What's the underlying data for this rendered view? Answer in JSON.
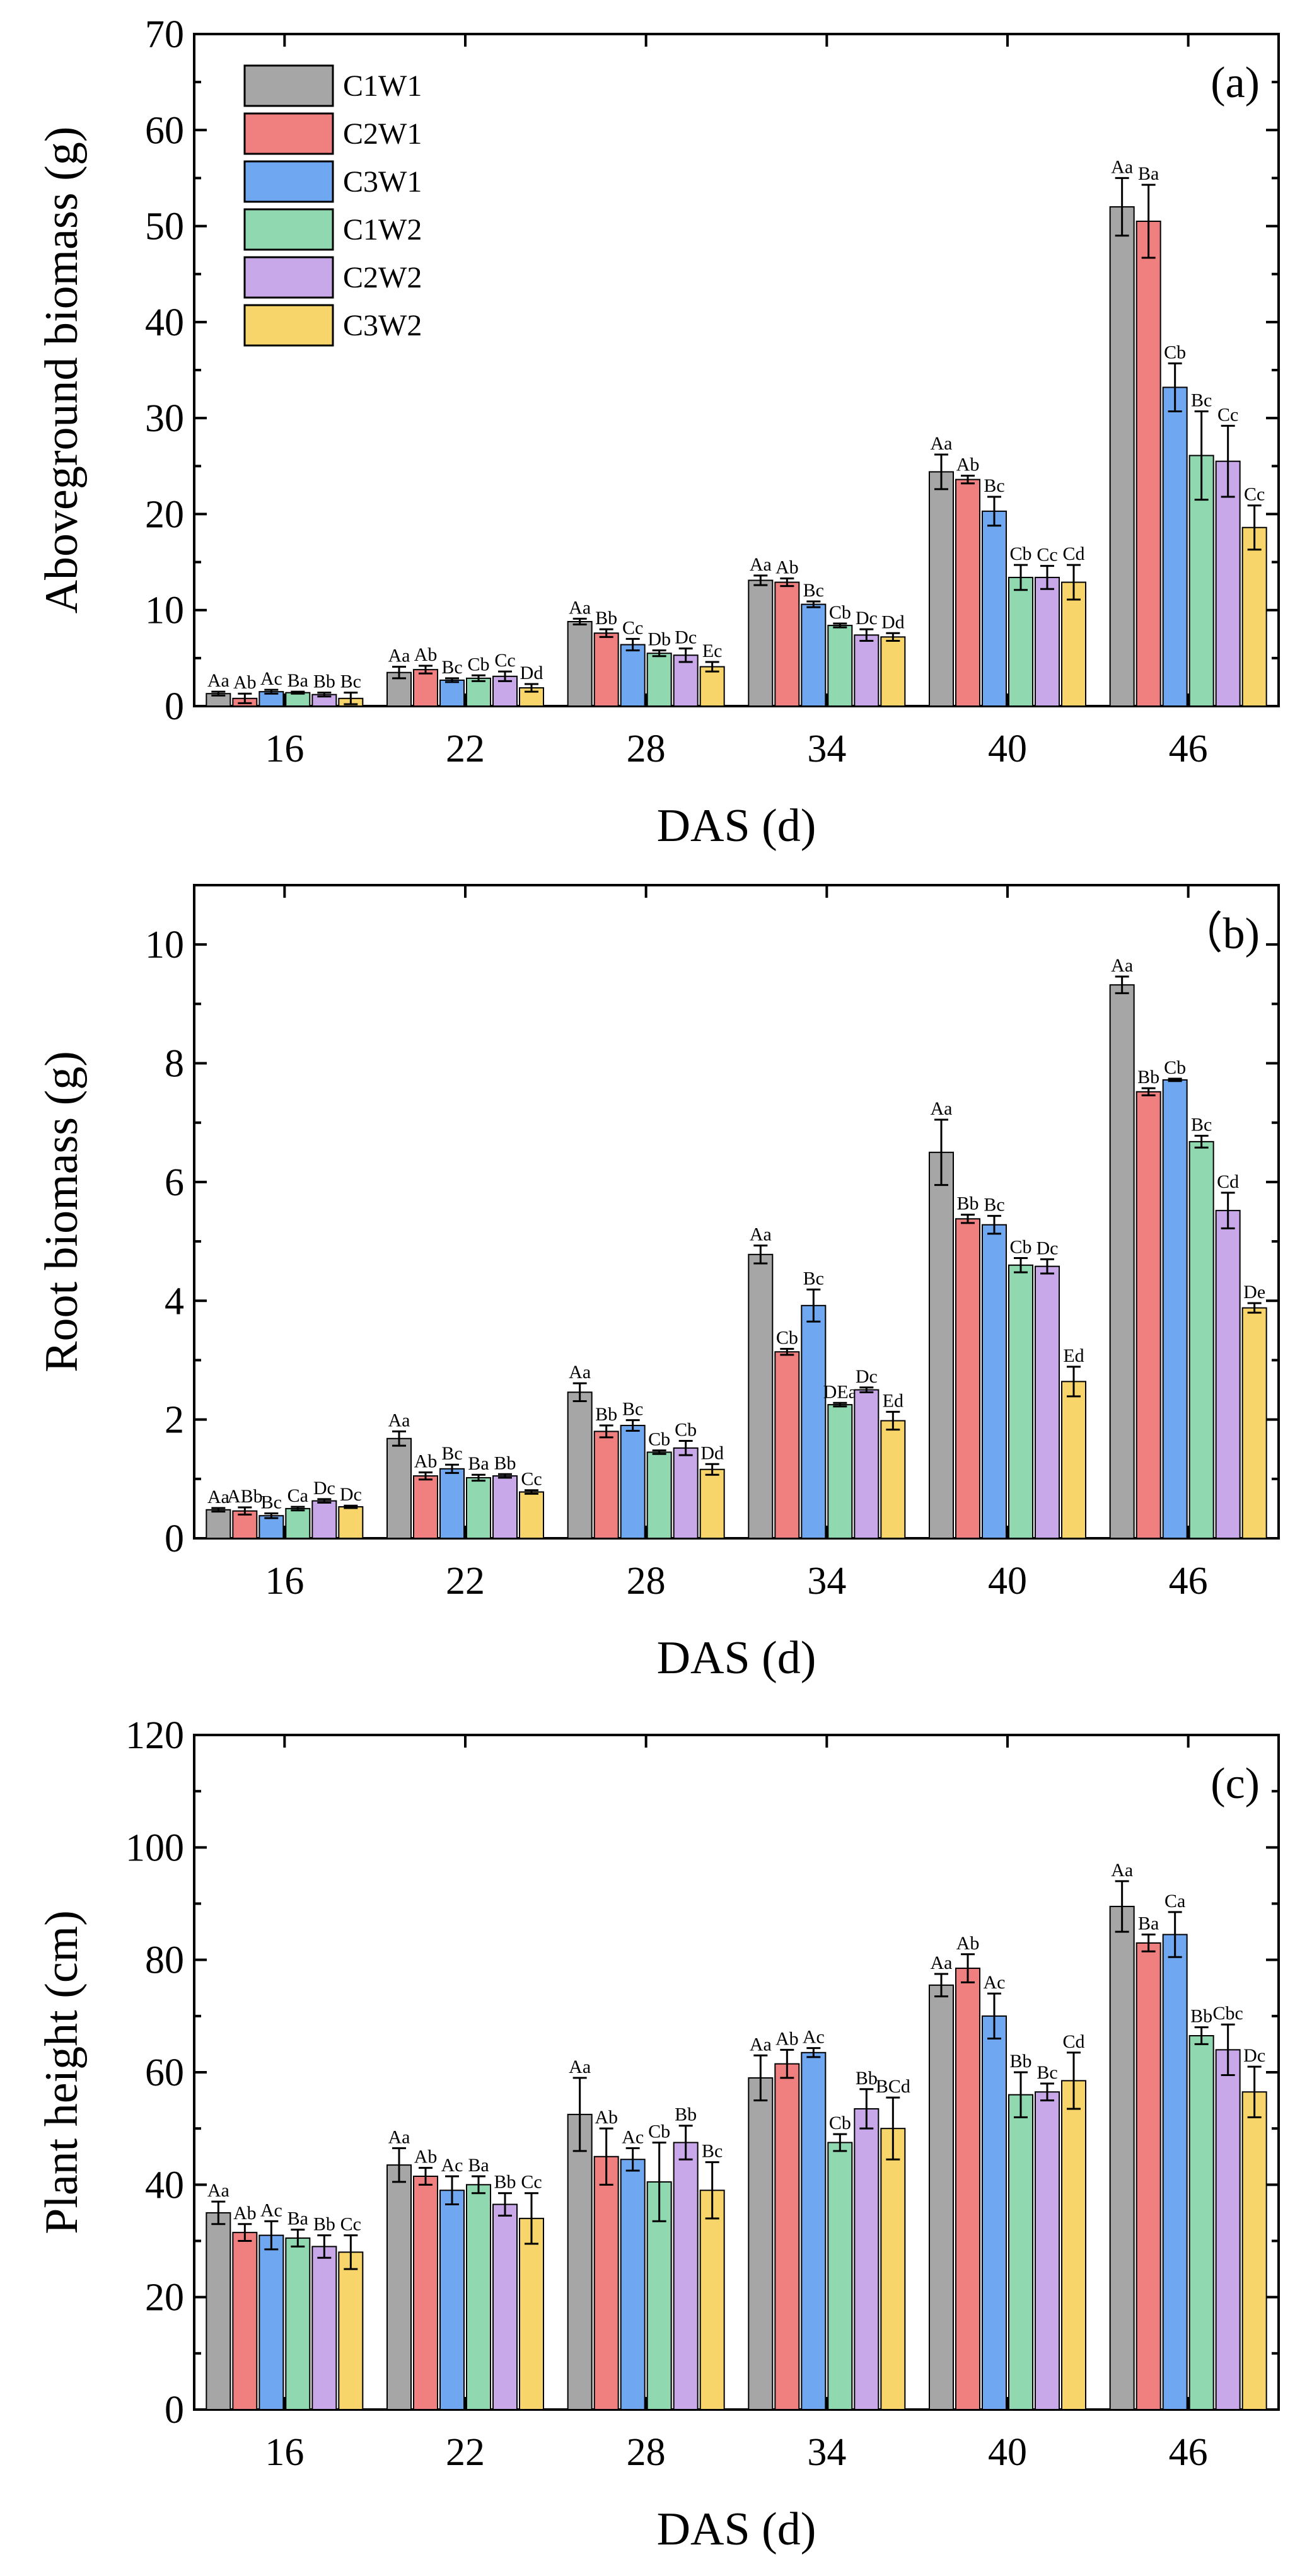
{
  "chart_data": [
    {
      "type": "bar",
      "panel_label": "(a)",
      "xlabel": "DAS (d)",
      "ylabel": "Aboveground biomass (g)",
      "categories": [
        "16",
        "22",
        "28",
        "34",
        "40",
        "46"
      ],
      "ylim": [
        0,
        70
      ],
      "yticks": [
        0,
        10,
        20,
        30,
        40,
        50,
        60,
        70
      ],
      "legend": "top-left",
      "series": [
        {
          "name": "C1W1",
          "color": "#a6a6a6",
          "values": [
            1.3,
            3.5,
            8.8,
            13.1,
            24.4,
            52.0
          ],
          "errors": [
            0.2,
            0.6,
            0.3,
            0.5,
            1.8,
            3.0
          ],
          "labels": [
            "Aa",
            "Aa",
            "Aa",
            "Aa",
            "Aa",
            "Aa"
          ]
        },
        {
          "name": "C2W1",
          "color": "#f08080",
          "values": [
            0.8,
            3.8,
            7.6,
            12.9,
            23.6,
            50.5
          ],
          "errors": [
            0.5,
            0.4,
            0.4,
            0.4,
            0.4,
            3.8
          ],
          "labels": [
            "Ab",
            "Ab",
            "Bb",
            "Ab",
            "Ab",
            "Ba"
          ]
        },
        {
          "name": "C3W1",
          "color": "#6fa8f0",
          "values": [
            1.5,
            2.7,
            6.4,
            10.6,
            20.3,
            33.2
          ],
          "errors": [
            0.2,
            0.2,
            0.6,
            0.3,
            1.5,
            2.5
          ],
          "labels": [
            "Ac",
            "Bc",
            "Cc",
            "Bc",
            "Bc",
            "Cb"
          ]
        },
        {
          "name": "C1W2",
          "color": "#8fd8b0",
          "values": [
            1.4,
            2.9,
            5.5,
            8.4,
            13.4,
            26.1
          ],
          "errors": [
            0.1,
            0.3,
            0.3,
            0.2,
            1.3,
            4.6
          ],
          "labels": [
            "Ba",
            "Cb",
            "Db",
            "Cb",
            "Cb",
            "Bc"
          ]
        },
        {
          "name": "C2W2",
          "color": "#c8a8e8",
          "values": [
            1.2,
            3.1,
            5.3,
            7.4,
            13.4,
            25.5
          ],
          "errors": [
            0.2,
            0.5,
            0.7,
            0.6,
            1.2,
            3.7
          ],
          "labels": [
            "Bb",
            "Cc",
            "Dc",
            "Dc",
            "Cc",
            "Cc"
          ]
        },
        {
          "name": "C3W2",
          "color": "#f8d56a",
          "values": [
            0.8,
            1.9,
            4.1,
            7.2,
            12.9,
            18.6
          ],
          "errors": [
            0.6,
            0.4,
            0.5,
            0.4,
            1.8,
            2.3
          ],
          "labels": [
            "Bc",
            "Dd",
            "Ec",
            "Dd",
            "Cd",
            "Cc"
          ]
        }
      ]
    },
    {
      "type": "bar",
      "panel_label": "（b)",
      "xlabel": "DAS (d)",
      "ylabel": "Root biomass (g)",
      "categories": [
        "16",
        "22",
        "28",
        "34",
        "40",
        "46"
      ],
      "ylim": [
        0,
        11
      ],
      "yticks": [
        0,
        2,
        4,
        6,
        8,
        10
      ],
      "series": [
        {
          "name": "C1W1",
          "color": "#a6a6a6",
          "values": [
            0.48,
            1.68,
            2.46,
            4.78,
            6.5,
            9.32
          ],
          "errors": [
            0.03,
            0.12,
            0.15,
            0.15,
            0.55,
            0.14
          ],
          "labels": [
            "Aa",
            "Aa",
            "Aa",
            "Aa",
            "Aa",
            "Aa"
          ]
        },
        {
          "name": "C2W1",
          "color": "#f08080",
          "values": [
            0.46,
            1.05,
            1.8,
            3.14,
            5.38,
            7.52
          ],
          "errors": [
            0.06,
            0.06,
            0.1,
            0.05,
            0.07,
            0.06
          ],
          "labels": [
            "ABb",
            "Ab",
            "Bb",
            "Cb",
            "Bb",
            "Bb"
          ]
        },
        {
          "name": "C3W1",
          "color": "#6fa8f0",
          "values": [
            0.38,
            1.17,
            1.9,
            3.92,
            5.28,
            7.72
          ],
          "errors": [
            0.04,
            0.07,
            0.09,
            0.27,
            0.15,
            0.02
          ],
          "labels": [
            "Bc",
            "Bc",
            "Bc",
            "Bc",
            "Bc",
            "Cb"
          ]
        },
        {
          "name": "C1W2",
          "color": "#8fd8b0",
          "values": [
            0.5,
            1.02,
            1.45,
            2.25,
            4.6,
            6.68
          ],
          "errors": [
            0.03,
            0.05,
            0.03,
            0.03,
            0.12,
            0.1
          ],
          "labels": [
            "Ca",
            "Ba",
            "Cb",
            "DEa",
            "Cb",
            "Bc"
          ]
        },
        {
          "name": "C2W2",
          "color": "#c8a8e8",
          "values": [
            0.63,
            1.05,
            1.52,
            2.5,
            4.58,
            5.52
          ],
          "errors": [
            0.03,
            0.03,
            0.12,
            0.04,
            0.12,
            0.3
          ],
          "labels": [
            "Dc",
            "Bb",
            "Cb",
            "Dc",
            "Dc",
            "Cd"
          ]
        },
        {
          "name": "C3W2",
          "color": "#f8d56a",
          "values": [
            0.53,
            0.78,
            1.16,
            1.98,
            2.64,
            3.88
          ],
          "errors": [
            0.02,
            0.03,
            0.09,
            0.15,
            0.25,
            0.08
          ],
          "labels": [
            "Dc",
            "Cc",
            "Dd",
            "Ed",
            "Ed",
            "De"
          ]
        }
      ]
    },
    {
      "type": "bar",
      "panel_label": "(c)",
      "xlabel": "DAS (d)",
      "ylabel": "Plant height (cm)",
      "categories": [
        "16",
        "22",
        "28",
        "34",
        "40",
        "46"
      ],
      "ylim": [
        0,
        120
      ],
      "yticks": [
        0,
        20,
        40,
        60,
        80,
        100,
        120
      ],
      "series": [
        {
          "name": "C1W1",
          "color": "#a6a6a6",
          "values": [
            35,
            43.5,
            52.5,
            59,
            75.5,
            89.5
          ],
          "errors": [
            2.0,
            3.0,
            6.5,
            4.0,
            2.0,
            4.5
          ],
          "labels": [
            "Aa",
            "Aa",
            "Aa",
            "Aa",
            "Aa",
            "Aa"
          ]
        },
        {
          "name": "C2W1",
          "color": "#f08080",
          "values": [
            31.5,
            41.5,
            45,
            61.5,
            78.5,
            83
          ],
          "errors": [
            1.5,
            1.5,
            5.0,
            2.5,
            2.5,
            1.5
          ],
          "labels": [
            "Ab",
            "Ab",
            "Ab",
            "Ab",
            "Ab",
            "Ba"
          ]
        },
        {
          "name": "C3W1",
          "color": "#6fa8f0",
          "values": [
            31,
            39,
            44.5,
            63.5,
            70,
            84.5
          ],
          "errors": [
            2.5,
            2.5,
            2.0,
            0.8,
            4.0,
            4.0
          ],
          "labels": [
            "Ac",
            "Ac",
            "Ac",
            "Ac",
            "Ac",
            "Ca"
          ]
        },
        {
          "name": "C1W2",
          "color": "#8fd8b0",
          "values": [
            30.5,
            40,
            40.5,
            47.5,
            56,
            66.5
          ],
          "errors": [
            1.5,
            1.5,
            7.0,
            1.5,
            4.0,
            1.5
          ],
          "labels": [
            "Ba",
            "Ba",
            "Cb",
            "Cb",
            "Bb",
            "Bb"
          ]
        },
        {
          "name": "C2W2",
          "color": "#c8a8e8",
          "values": [
            29,
            36.5,
            47.5,
            53.5,
            56.5,
            64
          ],
          "errors": [
            2.0,
            2.0,
            3.0,
            3.5,
            1.5,
            4.5
          ],
          "labels": [
            "Bb",
            "Bb",
            "Bb",
            "Bb",
            "Bc",
            "Cbc"
          ]
        },
        {
          "name": "C3W2",
          "color": "#f8d56a",
          "values": [
            28,
            34,
            39,
            50,
            58.5,
            56.5
          ],
          "errors": [
            3.0,
            4.5,
            5.0,
            5.5,
            5.0,
            4.5
          ],
          "labels": [
            "Cc",
            "Cc",
            "Bc",
            "BCd",
            "Cd",
            "Dc"
          ]
        }
      ]
    }
  ]
}
